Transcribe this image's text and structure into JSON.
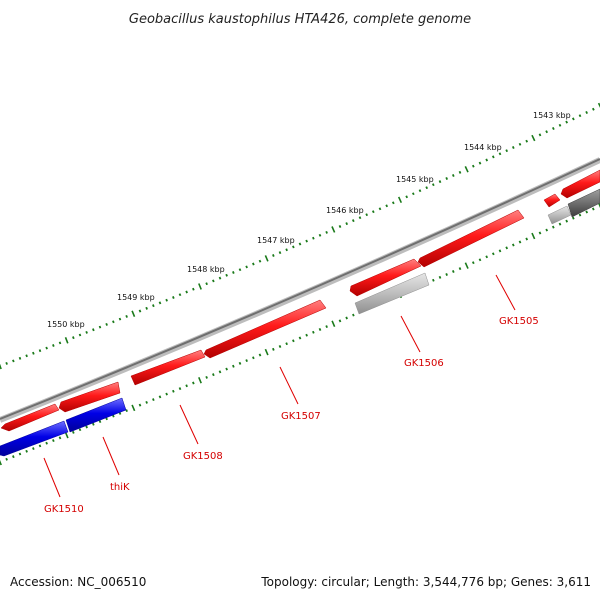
{
  "title": "Geobacillus kaustophilus HTA426, complete genome",
  "footer": {
    "accession": "Accession: NC_006510",
    "summary": "Topology: circular; Length: 3,544,776 bp; Genes: 3,611"
  },
  "kbp_labels": [
    "1543 kbp",
    "1544 kbp",
    "1545 kbp",
    "1546 kbp",
    "1547 kbp",
    "1548 kbp",
    "1549 kbp",
    "1550 kbp"
  ],
  "gene_labels": [
    "GK1505",
    "GK1506",
    "GK1507",
    "GK1508",
    "thiK",
    "GK1510"
  ],
  "colors": {
    "forward_gene": "#ff1a1a",
    "reverse_gene": "#0000e6",
    "pseudo_light": "#b8b8b8",
    "pseudo_dark": "#6e6e6e",
    "backbone": "#7a7a7a",
    "tick": "#1a7a1a",
    "label": "#d40000"
  }
}
